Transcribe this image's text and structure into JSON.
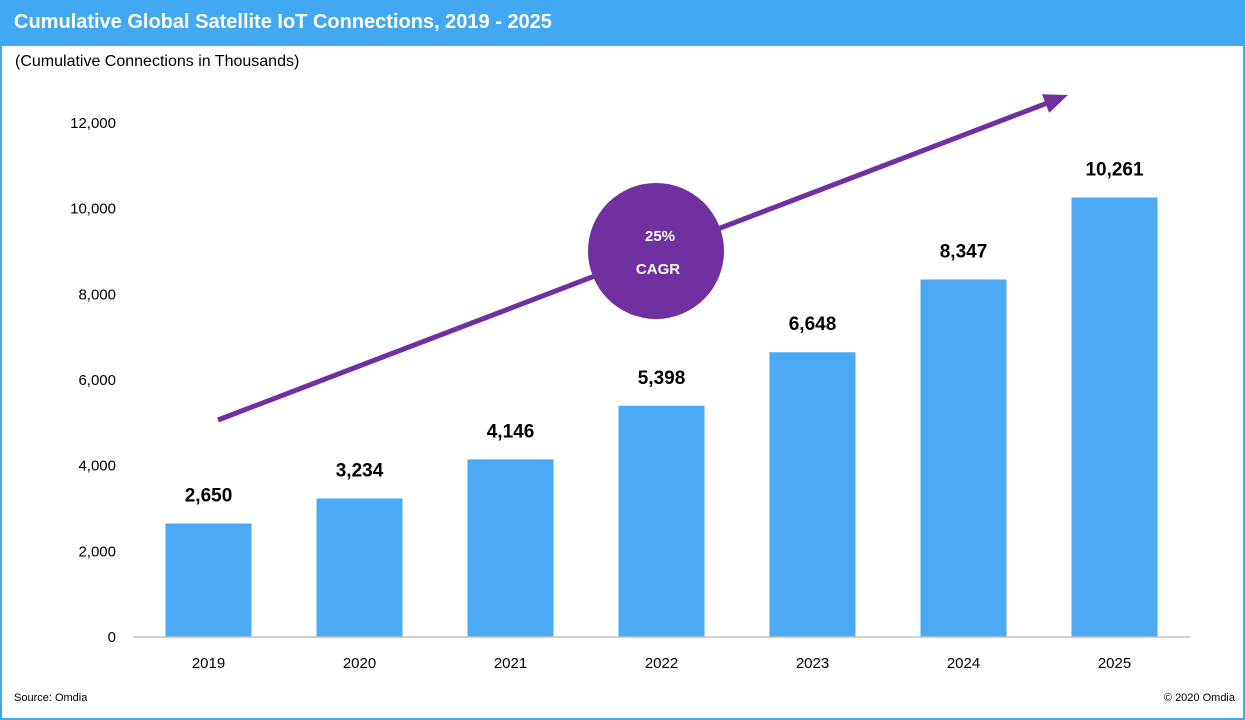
{
  "title": "Cumulative Global Satellite IoT Connections, 2019 - 2025",
  "subtitle": "(Cumulative Connections in Thousands)",
  "source": "Source: Omdia",
  "copyright": "© 2020 Omdia",
  "colors": {
    "header": "#41a8f1",
    "bar": "#4baaf3",
    "trend": "#7030a0"
  },
  "cagr": {
    "value": "25%",
    "label": "CAGR"
  },
  "chart_data": {
    "type": "bar",
    "categories": [
      "2019",
      "2020",
      "2021",
      "2022",
      "2023",
      "2024",
      "2025"
    ],
    "values": [
      2650,
      3234,
      4146,
      5398,
      6648,
      8347,
      10261
    ],
    "value_labels": [
      "2,650",
      "3,234",
      "4,146",
      "5,398",
      "6,648",
      "8,347",
      "10,261"
    ],
    "ylim": [
      0,
      12000
    ],
    "yticks": [
      0,
      2000,
      4000,
      6000,
      8000,
      10000,
      12000
    ],
    "ytick_labels": [
      "0",
      "2,000",
      "4,000",
      "6,000",
      "8,000",
      "10,000",
      "12,000"
    ],
    "grid": false,
    "legend": "none"
  }
}
